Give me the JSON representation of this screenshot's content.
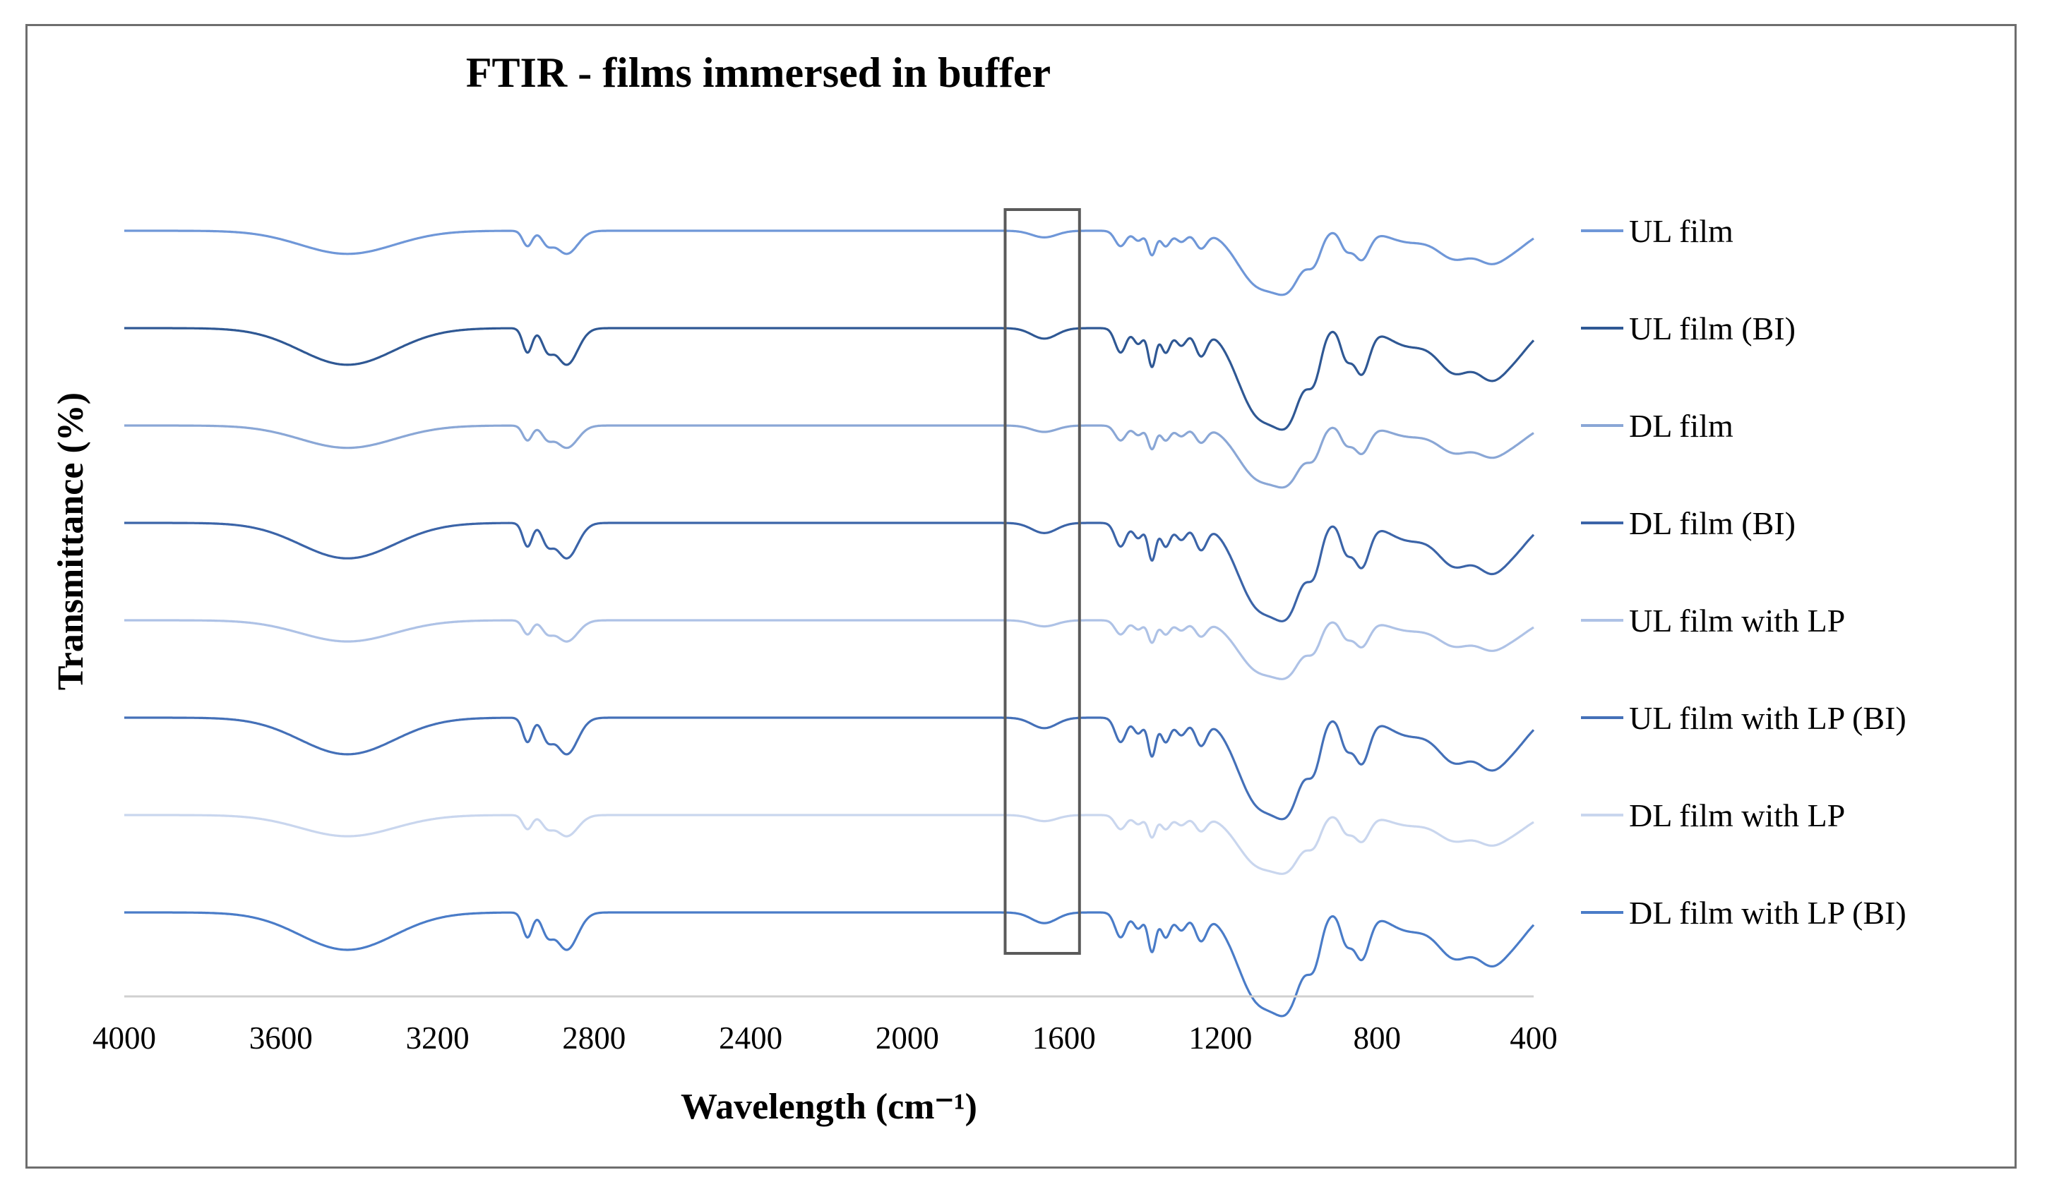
{
  "chart_data": {
    "type": "line",
    "title": "FTIR - films immersed in buffer",
    "xlabel": "Wavelength (cm⁻¹)",
    "ylabel": "Transmittance (%)",
    "xlim": [
      4000,
      400
    ],
    "x_reversed": true,
    "x_ticks": [
      "4000",
      "3600",
      "3200",
      "2800",
      "2400",
      "2000",
      "1600",
      "1200",
      "800",
      "400"
    ],
    "grid": false,
    "y_ticks_shown": false,
    "legend_position": "right",
    "highlight_region_cm1": [
      1750,
      1560
    ],
    "series": [
      {
        "name": "UL film",
        "color": "#6f97d8",
        "strength": 0.6
      },
      {
        "name": "UL film (BI)",
        "color": "#2f5894",
        "strength": 0.95
      },
      {
        "name": "DL film",
        "color": "#8aa7d6",
        "strength": 0.58
      },
      {
        "name": "DL film (BI)",
        "color": "#3b64a8",
        "strength": 0.92
      },
      {
        "name": "UL film with LP",
        "color": "#aec2e6",
        "strength": 0.55
      },
      {
        "name": "UL film with LP (BI)",
        "color": "#4470b8",
        "strength": 0.95
      },
      {
        "name": "DL film with LP",
        "color": "#c9d6ee",
        "strength": 0.55
      },
      {
        "name": "DL film with LP (BI)",
        "color": "#4a7cc8",
        "strength": 0.97
      }
    ],
    "spectral_features": [
      {
        "x": 3430,
        "depth": 0.42,
        "width": 120
      },
      {
        "x": 2970,
        "depth": 0.28,
        "width": 12
      },
      {
        "x": 2920,
        "depth": 0.2,
        "width": 14
      },
      {
        "x": 2870,
        "depth": 0.42,
        "width": 28
      },
      {
        "x": 1650,
        "depth": 0.12,
        "width": 32
      },
      {
        "x": 1455,
        "depth": 0.28,
        "width": 14
      },
      {
        "x": 1410,
        "depth": 0.18,
        "width": 12
      },
      {
        "x": 1375,
        "depth": 0.44,
        "width": 10
      },
      {
        "x": 1340,
        "depth": 0.28,
        "width": 12
      },
      {
        "x": 1300,
        "depth": 0.2,
        "width": 14
      },
      {
        "x": 1250,
        "depth": 0.3,
        "width": 15
      },
      {
        "x": 1100,
        "depth": 1.0,
        "width": 55
      },
      {
        "x": 1020,
        "depth": 0.72,
        "width": 35
      },
      {
        "x": 960,
        "depth": 0.44,
        "width": 18
      },
      {
        "x": 880,
        "depth": 0.3,
        "width": 14
      },
      {
        "x": 840,
        "depth": 0.52,
        "width": 20
      },
      {
        "x": 720,
        "depth": 0.2,
        "width": 50
      },
      {
        "x": 600,
        "depth": 0.5,
        "width": 45
      },
      {
        "x": 510,
        "depth": 0.44,
        "width": 35
      },
      {
        "x": 450,
        "depth": 0.3,
        "width": 40
      }
    ]
  }
}
